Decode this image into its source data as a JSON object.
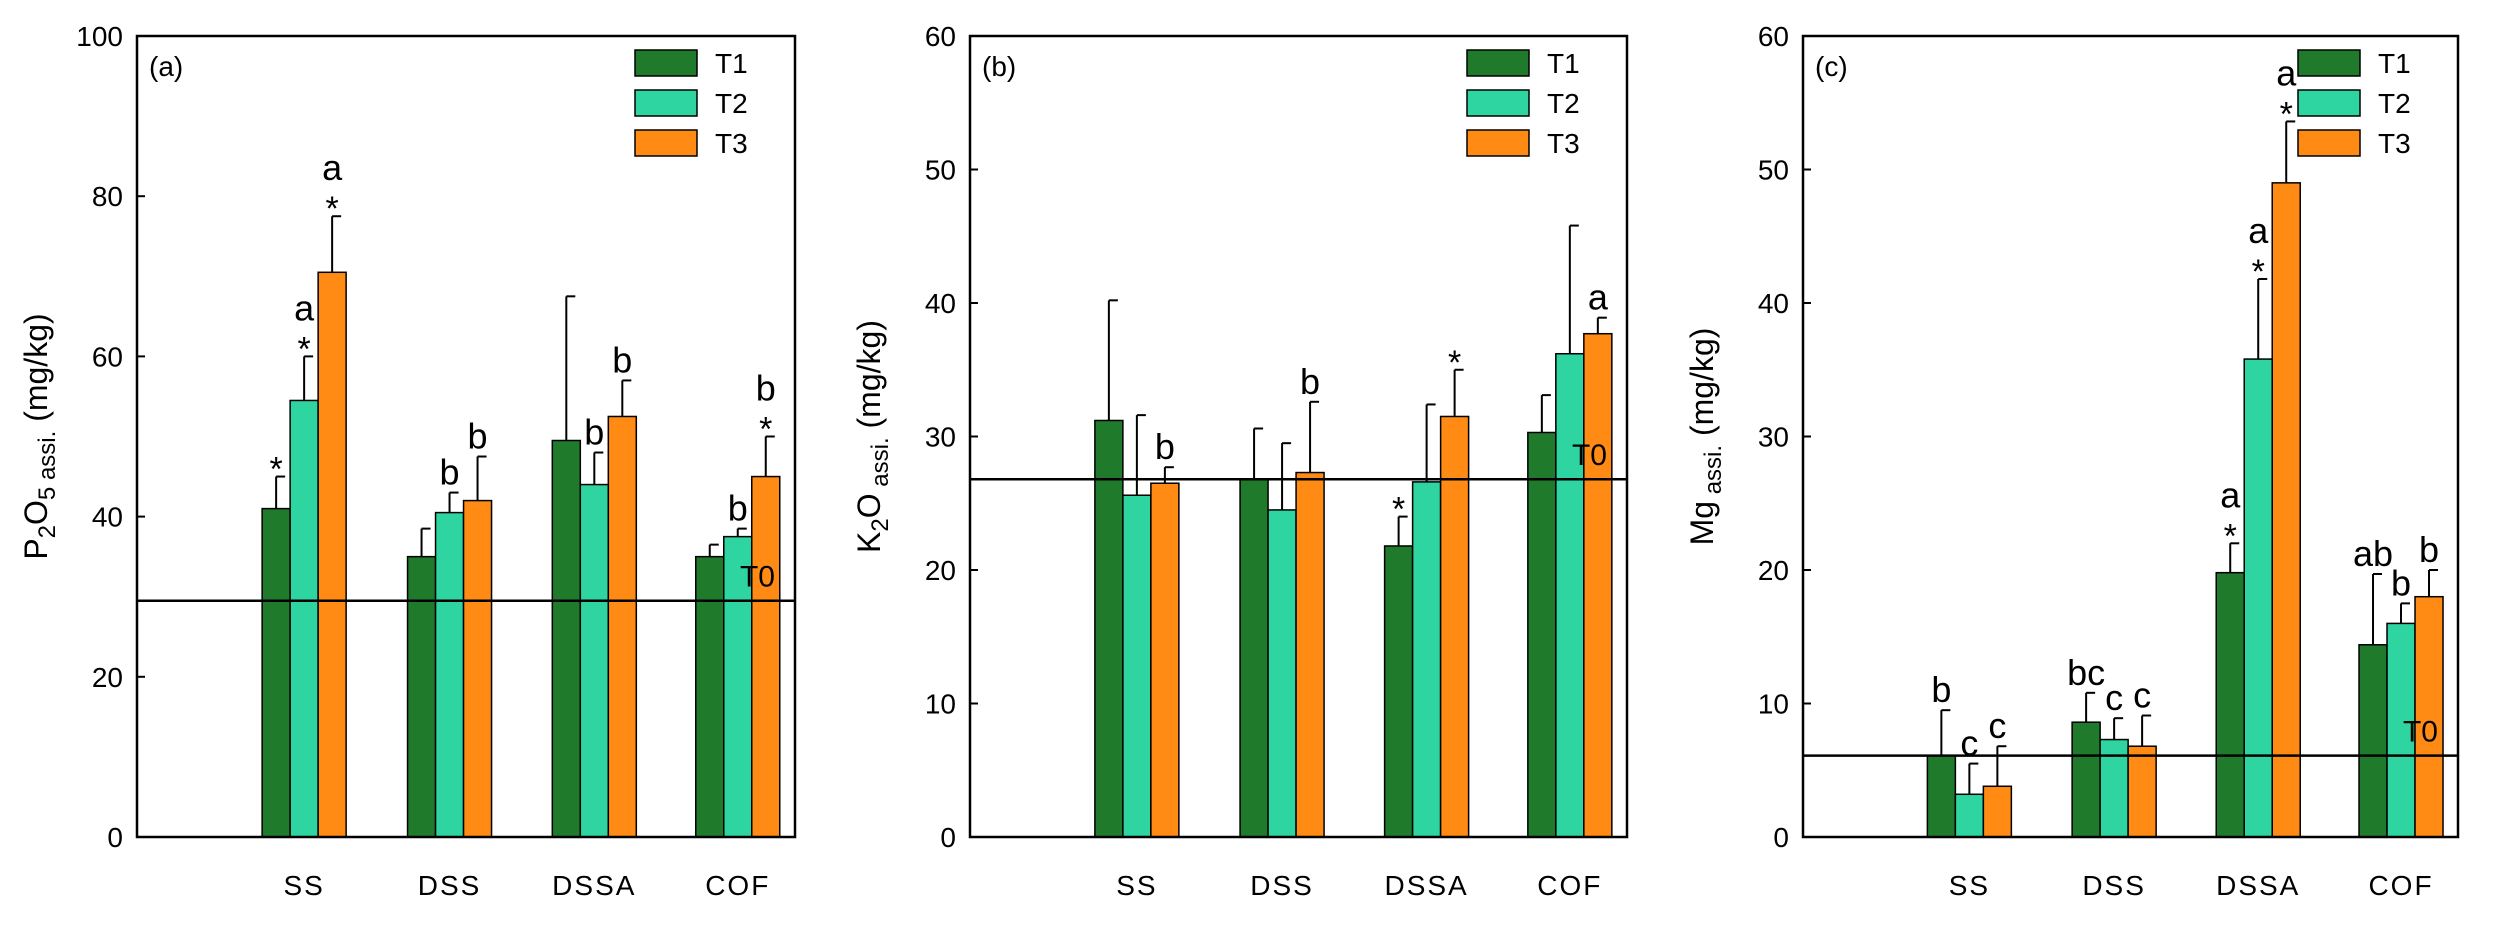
{
  "colors": {
    "T1": "#1f7a2c",
    "T2": "#2ed5a0",
    "T3": "#ff8a14",
    "axis": "#000000"
  },
  "chart_data": [
    {
      "type": "bar",
      "panel_label": "(a)",
      "ylabel_parts": [
        "P",
        "2",
        "O",
        "5",
        " assi.",
        " (mg/kg)"
      ],
      "xlabel": "",
      "categories": [
        "SS",
        "DSS",
        "DSSA",
        "COF"
      ],
      "legend": [
        "T1",
        "T2",
        "T3"
      ],
      "legend_position": "top-right",
      "ylim": [
        0,
        100
      ],
      "yticks": [
        "0",
        "20",
        "40",
        "60",
        "80",
        "100"
      ],
      "reference_line": {
        "label": "T0",
        "value": 29.5
      },
      "series": [
        {
          "name": "T1",
          "values": [
            41,
            35,
            49.5,
            35
          ],
          "errors": [
            4,
            3.5,
            18,
            1.5
          ],
          "letters": [
            "",
            "",
            "",
            ""
          ],
          "stars": [
            "*",
            "",
            "",
            ""
          ]
        },
        {
          "name": "T2",
          "values": [
            54.5,
            40.5,
            44,
            37.5
          ],
          "errors": [
            5.5,
            2.5,
            4,
            1
          ],
          "letters": [
            "a",
            "b",
            "b",
            "b"
          ],
          "stars": [
            "*",
            "",
            "",
            ""
          ]
        },
        {
          "name": "T3",
          "values": [
            70.5,
            42,
            52.5,
            45
          ],
          "errors": [
            7,
            5.5,
            4.5,
            5
          ],
          "letters": [
            "a",
            "b",
            "b",
            "b"
          ],
          "stars": [
            "*",
            "",
            "",
            "*"
          ]
        }
      ]
    },
    {
      "type": "bar",
      "panel_label": "(b)",
      "ylabel_parts": [
        "K",
        "2",
        "O",
        "",
        " assi.",
        " (mg/kg)"
      ],
      "xlabel": "",
      "categories": [
        "SS",
        "DSS",
        "DSSA",
        "COF"
      ],
      "legend": [
        "T1",
        "T2",
        "T3"
      ],
      "legend_position": "top-right",
      "ylim": [
        0,
        60
      ],
      "yticks": [
        "0",
        "10",
        "20",
        "30",
        "40",
        "50",
        "60"
      ],
      "reference_line": {
        "label": "T0",
        "value": 26.8
      },
      "series": [
        {
          "name": "T1",
          "values": [
            31.2,
            26.8,
            21.8,
            30.3
          ],
          "errors": [
            9,
            3.8,
            2.2,
            2.8
          ],
          "letters": [
            "",
            "",
            "",
            ""
          ],
          "stars": [
            "",
            "",
            "*",
            ""
          ]
        },
        {
          "name": "T2",
          "values": [
            25.6,
            24.5,
            26.6,
            36.2
          ],
          "errors": [
            6,
            5,
            5.8,
            9.6
          ],
          "letters": [
            "",
            "",
            "",
            ""
          ],
          "stars": [
            "",
            "",
            "",
            ""
          ]
        },
        {
          "name": "T3",
          "values": [
            26.5,
            27.3,
            31.5,
            37.7
          ],
          "errors": [
            1.2,
            5.3,
            3.5,
            1.2
          ],
          "letters": [
            "b",
            "b",
            "",
            "a"
          ],
          "stars": [
            "",
            "",
            "*",
            ""
          ]
        }
      ]
    },
    {
      "type": "bar",
      "panel_label": "(c)",
      "ylabel_parts": [
        "Mg",
        "",
        "",
        "",
        " assi.",
        " (mg/kg)"
      ],
      "xlabel": "",
      "categories": [
        "SS",
        "DSS",
        "DSSA",
        "COF"
      ],
      "legend": [
        "T1",
        "T2",
        "T3"
      ],
      "legend_position": "top-right",
      "ylim": [
        0,
        60
      ],
      "yticks": [
        "0",
        "10",
        "20",
        "30",
        "40",
        "50",
        "60"
      ],
      "reference_line": {
        "label": "T0",
        "value": 6.1
      },
      "series": [
        {
          "name": "T1",
          "values": [
            6.1,
            8.6,
            19.8,
            14.4
          ],
          "errors": [
            3.4,
            2.2,
            2.2,
            5.3
          ],
          "letters": [
            "b",
            "bc",
            "a",
            "ab"
          ],
          "stars": [
            "",
            "",
            "*",
            ""
          ]
        },
        {
          "name": "T2",
          "values": [
            3.2,
            7.3,
            35.8,
            16
          ],
          "errors": [
            2.3,
            1.6,
            6,
            1.5
          ],
          "letters": [
            "c",
            "c",
            "a",
            "b"
          ],
          "stars": [
            "",
            "",
            "*",
            ""
          ]
        },
        {
          "name": "T3",
          "values": [
            3.8,
            6.8,
            49,
            18
          ],
          "errors": [
            3,
            2.3,
            4.6,
            2
          ],
          "letters": [
            "c",
            "c",
            "a",
            "b"
          ],
          "stars": [
            "",
            "",
            "*",
            ""
          ]
        }
      ]
    }
  ]
}
